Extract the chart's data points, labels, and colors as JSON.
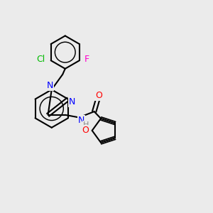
{
  "background_color": "#ebebeb",
  "bond_color": "#000000",
  "bond_width": 1.5,
  "atom_colors": {
    "N": "#0000ff",
    "O": "#ff0000",
    "Cl": "#00bb00",
    "F": "#ff00cc",
    "H": "#888888",
    "C": "#000000"
  },
  "font_size": 9
}
